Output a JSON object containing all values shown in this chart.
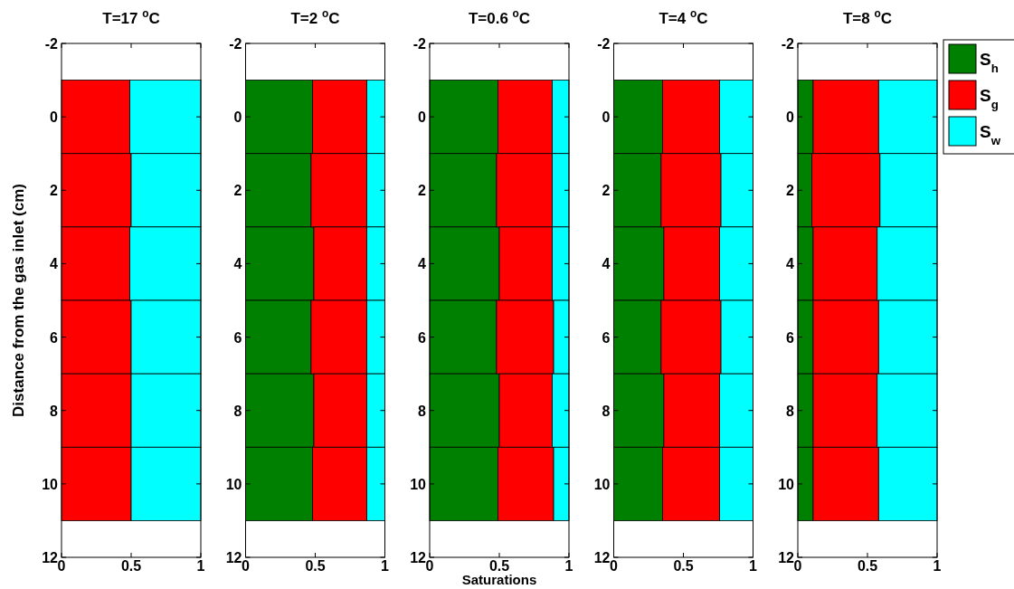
{
  "chart_data": [
    {
      "type": "bar",
      "orientation": "horizontal",
      "stacked": true,
      "title": "T=17 $^{o}$C",
      "ylabel": "Distance from the gas inlet (cm)",
      "x": [
        0,
        2,
        4,
        6,
        8,
        10
      ],
      "xlim": [
        0,
        1
      ],
      "xticks": [
        0,
        0.5,
        1
      ],
      "ylim": [
        12,
        -2
      ],
      "yticks": [
        -2,
        0,
        2,
        4,
        6,
        8,
        10,
        12
      ],
      "series": [
        {
          "color": "#ff0000",
          "values": [
            0.49,
            0.5,
            0.49,
            0.5,
            0.5,
            0.5
          ]
        },
        {
          "color": "#00ffff",
          "values": [
            0.51,
            0.5,
            0.51,
            0.5,
            0.5,
            0.5
          ]
        }
      ]
    },
    {
      "type": "bar",
      "orientation": "horizontal",
      "stacked": true,
      "title": "T=2 $^{o}$C",
      "x": [
        0,
        2,
        4,
        6,
        8,
        10
      ],
      "xlim": [
        0,
        1
      ],
      "xticks": [
        0,
        0.5,
        1
      ],
      "ylim": [
        12,
        -2
      ],
      "yticks": [
        -2,
        0,
        2,
        4,
        6,
        8,
        10,
        12
      ],
      "series": [
        {
          "color": "#008000",
          "values": [
            0.48,
            0.47,
            0.49,
            0.47,
            0.49,
            0.48
          ]
        },
        {
          "color": "#ff0000",
          "values": [
            0.39,
            0.4,
            0.38,
            0.4,
            0.38,
            0.39
          ]
        },
        {
          "color": "#00ffff",
          "values": [
            0.13,
            0.13,
            0.13,
            0.13,
            0.13,
            0.13
          ]
        }
      ]
    },
    {
      "type": "bar",
      "orientation": "horizontal",
      "stacked": true,
      "title": "T=0.6 $^{o}$C",
      "xlabel": "Saturations",
      "x": [
        0,
        2,
        4,
        6,
        8,
        10
      ],
      "xlim": [
        0,
        1
      ],
      "xticks": [
        0,
        0.5,
        1
      ],
      "ylim": [
        12,
        -2
      ],
      "yticks": [
        -2,
        0,
        2,
        4,
        6,
        8,
        10,
        12
      ],
      "series": [
        {
          "color": "#008000",
          "values": [
            0.49,
            0.48,
            0.5,
            0.48,
            0.5,
            0.49
          ]
        },
        {
          "color": "#ff0000",
          "values": [
            0.39,
            0.4,
            0.38,
            0.41,
            0.38,
            0.4
          ]
        },
        {
          "color": "#00ffff",
          "values": [
            0.12,
            0.12,
            0.12,
            0.11,
            0.12,
            0.11
          ]
        }
      ]
    },
    {
      "type": "bar",
      "orientation": "horizontal",
      "stacked": true,
      "title": "T=4 $^{o}$C",
      "x": [
        0,
        2,
        4,
        6,
        8,
        10
      ],
      "xlim": [
        0,
        1
      ],
      "xticks": [
        0,
        0.5,
        1
      ],
      "ylim": [
        12,
        -2
      ],
      "yticks": [
        -2,
        0,
        2,
        4,
        6,
        8,
        10,
        12
      ],
      "series": [
        {
          "color": "#008000",
          "values": [
            0.35,
            0.34,
            0.36,
            0.34,
            0.36,
            0.35
          ]
        },
        {
          "color": "#ff0000",
          "values": [
            0.41,
            0.43,
            0.4,
            0.43,
            0.4,
            0.41
          ]
        },
        {
          "color": "#00ffff",
          "values": [
            0.24,
            0.23,
            0.24,
            0.23,
            0.24,
            0.24
          ]
        }
      ]
    },
    {
      "type": "bar",
      "orientation": "horizontal",
      "stacked": true,
      "title": "T=8 $^{o}$C",
      "legend": "top right",
      "x": [
        0,
        2,
        4,
        6,
        8,
        10
      ],
      "xlim": [
        0,
        1
      ],
      "xticks": [
        0,
        0.5,
        1
      ],
      "ylim": [
        12,
        -2
      ],
      "yticks": [
        -2,
        0,
        2,
        4,
        6,
        8,
        10,
        12
      ],
      "series": [
        {
          "name": "S$_{h}$",
          "color": "#008000",
          "values": [
            0.11,
            0.1,
            0.11,
            0.11,
            0.11,
            0.11
          ]
        },
        {
          "name": "S$_{g}$",
          "color": "#ff0000",
          "values": [
            0.47,
            0.49,
            0.46,
            0.47,
            0.46,
            0.47
          ]
        },
        {
          "name": "S$_{w}$",
          "color": "#00ffff",
          "values": [
            0.42,
            0.41,
            0.43,
            0.42,
            0.43,
            0.42
          ]
        }
      ]
    }
  ]
}
